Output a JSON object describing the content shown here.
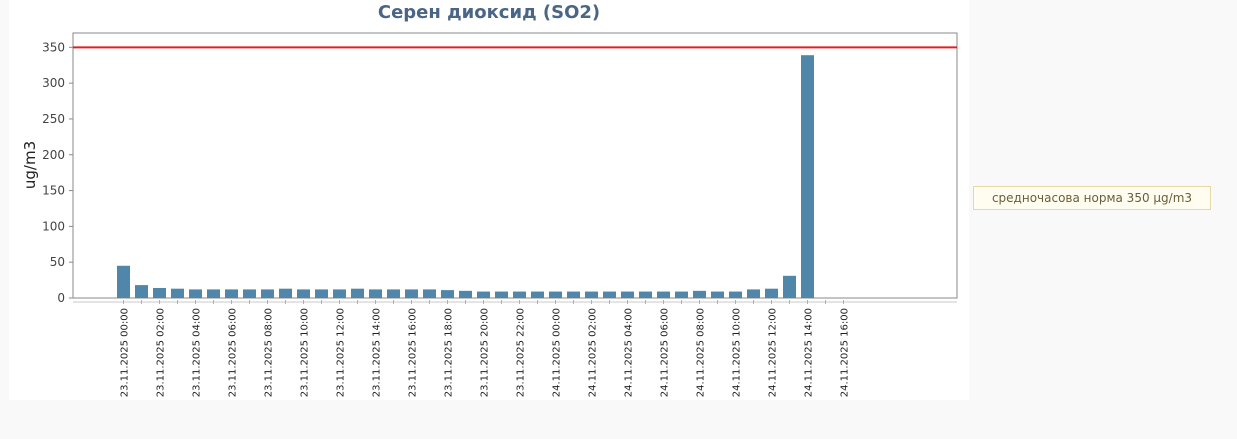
{
  "note": "средночасова норма 350 µg/m3",
  "chart_data": {
    "type": "bar",
    "title": "Серен диоксид (SO2)",
    "ylabel": "ug/m3",
    "xlabel": "",
    "ylim": [
      0,
      370
    ],
    "yticks": [
      0,
      50,
      100,
      150,
      200,
      250,
      300,
      350
    ],
    "threshold": {
      "value": 350,
      "color": "#e02020"
    },
    "bar_color": "#4f86a9",
    "grid": false,
    "categories": [
      "23.11.2025 00:00",
      "23.11.2025 01:00",
      "23.11.2025 02:00",
      "23.11.2025 03:00",
      "23.11.2025 04:00",
      "23.11.2025 05:00",
      "23.11.2025 06:00",
      "23.11.2025 07:00",
      "23.11.2025 08:00",
      "23.11.2025 09:00",
      "23.11.2025 10:00",
      "23.11.2025 11:00",
      "23.11.2025 12:00",
      "23.11.2025 13:00",
      "23.11.2025 14:00",
      "23.11.2025 15:00",
      "23.11.2025 16:00",
      "23.11.2025 17:00",
      "23.11.2025 18:00",
      "23.11.2025 19:00",
      "23.11.2025 20:00",
      "23.11.2025 21:00",
      "23.11.2025 22:00",
      "23.11.2025 23:00",
      "24.11.2025 00:00",
      "24.11.2025 01:00",
      "24.11.2025 02:00",
      "24.11.2025 03:00",
      "24.11.2025 04:00",
      "24.11.2025 05:00",
      "24.11.2025 06:00",
      "24.11.2025 07:00",
      "24.11.2025 08:00",
      "24.11.2025 09:00",
      "24.11.2025 10:00",
      "24.11.2025 11:00",
      "24.11.2025 12:00",
      "24.11.2025 13:00",
      "24.11.2025 14:00",
      "24.11.2025 15:00",
      "24.11.2025 16:00"
    ],
    "values": [
      45,
      18,
      14,
      13,
      12,
      12,
      12,
      12,
      12,
      13,
      12,
      12,
      12,
      13,
      12,
      12,
      12,
      12,
      11,
      10,
      9,
      9,
      9,
      9,
      9,
      9,
      9,
      9,
      9,
      9,
      9,
      9,
      10,
      9,
      9,
      12,
      13,
      31,
      339,
      null,
      null
    ],
    "xtick_labels": [
      "23.11.2025 00:00",
      "23.11.2025 02:00",
      "23.11.2025 04:00",
      "23.11.2025 06:00",
      "23.11.2025 08:00",
      "23.11.2025 10:00",
      "23.11.2025 12:00",
      "23.11.2025 14:00",
      "23.11.2025 16:00",
      "23.11.2025 18:00",
      "23.11.2025 20:00",
      "23.11.2025 22:00",
      "24.11.2025 00:00",
      "24.11.2025 02:00",
      "24.11.2025 04:00",
      "24.11.2025 06:00",
      "24.11.2025 08:00",
      "24.11.2025 10:00",
      "24.11.2025 12:00",
      "24.11.2025 14:00",
      "24.11.2025 16:00"
    ]
  }
}
